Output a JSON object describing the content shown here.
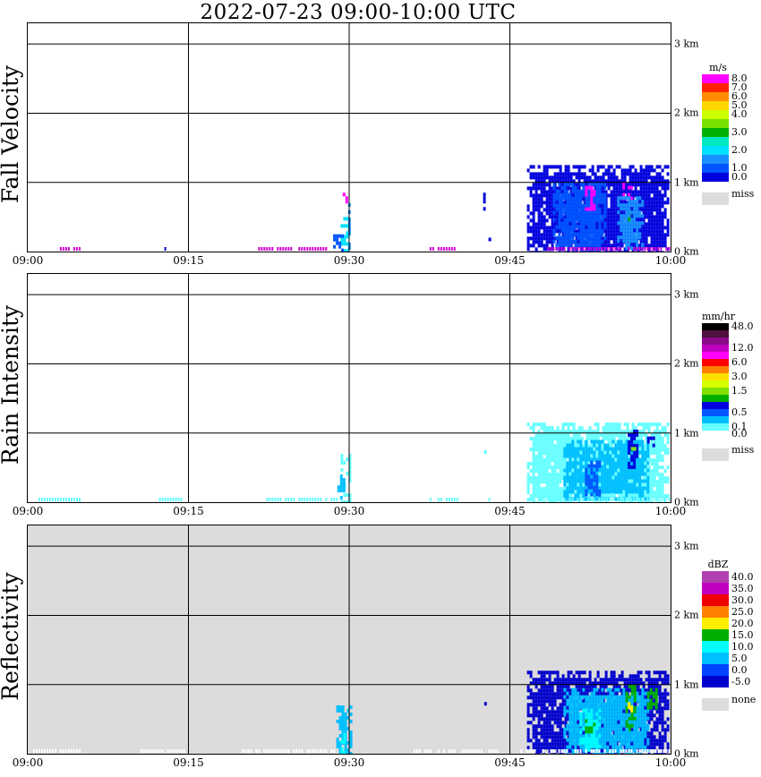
{
  "title": "2022-07-23   09:00-10:00 UTC",
  "chart_data": [
    {
      "type": "heatmap",
      "panel": "Fall Velocity",
      "ylabel": "Fall Velocity",
      "x_ticks": [
        "09:00",
        "09:15",
        "09:30",
        "09:45",
        "10:00"
      ],
      "y_ticks": [
        "0 km",
        "1 km",
        "2 km",
        "3 km"
      ],
      "xlim": [
        "09:00",
        "10:00"
      ],
      "ylim_km": [
        0,
        3.3
      ],
      "grid": true,
      "background": "white",
      "legend": {
        "unit": "m/s",
        "entries": [
          {
            "label": "8.0",
            "color": "#ff00ff"
          },
          {
            "label": "7.0",
            "color": "#ff2200"
          },
          {
            "label": "6.0",
            "color": "#ff8c00"
          },
          {
            "label": "5.0",
            "color": "#ffd700"
          },
          {
            "label": "4.0",
            "color": "#ccff00"
          },
          {
            "label": "",
            "color": "#7ae000"
          },
          {
            "label": "3.0",
            "color": "#00b000"
          },
          {
            "label": "",
            "color": "#00e8c0"
          },
          {
            "label": "2.0",
            "color": "#00e0ff"
          },
          {
            "label": "",
            "color": "#1a90ff"
          },
          {
            "label": "1.0",
            "color": "#0055ff"
          },
          {
            "label": "0.0",
            "color": "#0000dd"
          }
        ],
        "miss_label": "miss",
        "miss_color": "#dcdcdc"
      },
      "echoes": [
        {
          "x_min": 29.9,
          "x_max": 30.1,
          "z_min": 0.0,
          "z_max": 0.75,
          "color": "#1a90ff"
        },
        {
          "x_min": 29.2,
          "x_max": 29.9,
          "z_min": 0.0,
          "z_max": 0.5,
          "color": "#00e0ff"
        },
        {
          "x_min": 29.4,
          "x_max": 29.7,
          "z_min": 0.7,
          "z_max": 0.85,
          "color": "#ff00ff"
        },
        {
          "x_min": 28.5,
          "x_max": 29.4,
          "z_min": 0.0,
          "z_max": 0.25,
          "color": "#0055ff"
        },
        {
          "x_min": 42.5,
          "x_max": 42.7,
          "z_min": 0.6,
          "z_max": 0.85,
          "color": "#0000dd"
        },
        {
          "x_min": 43.0,
          "x_max": 43.2,
          "z_min": 0.05,
          "z_max": 0.2,
          "color": "#0000dd"
        },
        {
          "x_min": 46.6,
          "x_max": 59.8,
          "z_min": 0.0,
          "z_max": 1.25,
          "color": "#0000dd"
        },
        {
          "x_min": 49.0,
          "x_max": 54.0,
          "z_min": 0.0,
          "z_max": 1.0,
          "color": "#0055ff"
        },
        {
          "x_min": 52.0,
          "x_max": 53.0,
          "z_min": 0.6,
          "z_max": 0.95,
          "color": "#ff00ff"
        },
        {
          "x_min": 55.5,
          "x_max": 56.5,
          "z_min": 0.75,
          "z_max": 1.0,
          "color": "#ff00ff"
        },
        {
          "x_min": 55.8,
          "x_max": 56.3,
          "z_min": 0.4,
          "z_max": 0.6,
          "color": "#00b000"
        },
        {
          "x_min": 55.0,
          "x_max": 57.5,
          "z_min": 0.05,
          "z_max": 0.8,
          "color": "#1a90ff"
        }
      ],
      "surface_marks": [
        {
          "x_min": 3.0,
          "x_max": 5.0,
          "color": "#d100d1"
        },
        {
          "x_min": 12.5,
          "x_max": 13.0,
          "color": "#0000dd"
        },
        {
          "x_min": 14.5,
          "x_max": 15.0,
          "color": "#d100d1"
        },
        {
          "x_min": 21.5,
          "x_max": 28.0,
          "color": "#d100d1"
        },
        {
          "x_min": 37.5,
          "x_max": 40.0,
          "color": "#d100d1"
        },
        {
          "x_min": 48.5,
          "x_max": 59.8,
          "color": "#d100d1"
        }
      ]
    },
    {
      "type": "heatmap",
      "panel": "Rain Intensity",
      "ylabel": "Rain Intensity",
      "x_ticks": [
        "09:00",
        "09:15",
        "09:30",
        "09:45",
        "10:00"
      ],
      "y_ticks": [
        "0 km",
        "1 km",
        "2 km",
        "3 km"
      ],
      "xlim": [
        "09:00",
        "10:00"
      ],
      "ylim_km": [
        0,
        3.3
      ],
      "grid": true,
      "background": "white",
      "legend": {
        "unit": "mm/hr",
        "entries": [
          {
            "label": "48.0",
            "color": "#000000"
          },
          {
            "label": "",
            "color": "#501040"
          },
          {
            "label": "",
            "color": "#8a0a8a"
          },
          {
            "label": "12.0",
            "color": "#c000c0"
          },
          {
            "label": "",
            "color": "#ff00ff"
          },
          {
            "label": "6.0",
            "color": "#ff0000"
          },
          {
            "label": "",
            "color": "#ff8000"
          },
          {
            "label": "3.0",
            "color": "#ffe000"
          },
          {
            "label": "",
            "color": "#d6ff00"
          },
          {
            "label": "1.5",
            "color": "#80e000"
          },
          {
            "label": "",
            "color": "#00b000"
          },
          {
            "label": "",
            "color": "#0000dd"
          },
          {
            "label": "0.5",
            "color": "#0055ff"
          },
          {
            "label": "",
            "color": "#00bfff"
          },
          {
            "label": "0.1",
            "color": "#66ffff"
          },
          {
            "label": "0.0",
            "color": "#ffffff"
          }
        ],
        "miss_label": "miss",
        "miss_color": "#dcdcdc"
      },
      "echoes": [
        {
          "x_min": 29.2,
          "x_max": 30.1,
          "z_min": 0.0,
          "z_max": 0.75,
          "color": "#66ffff"
        },
        {
          "x_min": 28.9,
          "x_max": 29.6,
          "z_min": 0.05,
          "z_max": 0.4,
          "color": "#00bfff"
        },
        {
          "x_min": 42.6,
          "x_max": 42.7,
          "z_min": 0.6,
          "z_max": 0.8,
          "color": "#66ffff"
        },
        {
          "x_min": 46.6,
          "x_max": 59.8,
          "z_min": 0.0,
          "z_max": 1.15,
          "color": "#66ffff"
        },
        {
          "x_min": 50.0,
          "x_max": 58.0,
          "z_min": 0.05,
          "z_max": 0.9,
          "color": "#00bfff"
        },
        {
          "x_min": 52.0,
          "x_max": 53.5,
          "z_min": 0.1,
          "z_max": 0.6,
          "color": "#0055ff"
        },
        {
          "x_min": 56.0,
          "x_max": 57.0,
          "z_min": 0.5,
          "z_max": 1.05,
          "color": "#0000dd"
        },
        {
          "x_min": 56.3,
          "x_max": 56.6,
          "z_min": 0.75,
          "z_max": 0.85,
          "color": "#80e000"
        },
        {
          "x_min": 57.8,
          "x_max": 58.5,
          "z_min": 0.8,
          "z_max": 0.95,
          "color": "#0000dd"
        }
      ],
      "surface_marks": [
        {
          "x_min": 1.0,
          "x_max": 5.0,
          "color": "#66ffff"
        },
        {
          "x_min": 12.0,
          "x_max": 14.5,
          "color": "#66ffff"
        },
        {
          "x_min": 22.0,
          "x_max": 29.0,
          "color": "#66ffff"
        },
        {
          "x_min": 37.5,
          "x_max": 40.5,
          "color": "#66ffff"
        },
        {
          "x_min": 43.0,
          "x_max": 43.5,
          "color": "#66ffff"
        },
        {
          "x_min": 48.0,
          "x_max": 59.8,
          "color": "#66ffff"
        }
      ]
    },
    {
      "type": "heatmap",
      "panel": "Reflectivity",
      "ylabel": "Reflectivity",
      "x_ticks": [
        "09:00",
        "09:15",
        "09:30",
        "09:45",
        "10:00"
      ],
      "y_ticks": [
        "0 km",
        "1 km",
        "2 km",
        "3 km"
      ],
      "xlim": [
        "09:00",
        "10:00"
      ],
      "ylim_km": [
        0,
        3.3
      ],
      "grid": true,
      "background": "#dcdcdc",
      "legend": {
        "unit": "dBZ",
        "entries": [
          {
            "label": "40.0",
            "color": "#b040b0"
          },
          {
            "label": "35.0",
            "color": "#c000c0"
          },
          {
            "label": "30.0",
            "color": "#ee0000"
          },
          {
            "label": "25.0",
            "color": "#ff8000"
          },
          {
            "label": "20.0",
            "color": "#ffee00"
          },
          {
            "label": "15.0",
            "color": "#00b000"
          },
          {
            "label": "10.0",
            "color": "#00ffff"
          },
          {
            "label": "5.0",
            "color": "#00bfff"
          },
          {
            "label": "0.0",
            "color": "#0044ff"
          },
          {
            "label": "-5.0",
            "color": "#0000cc"
          }
        ],
        "miss_label": "none",
        "miss_color": "#dcdcdc"
      },
      "echoes": [
        {
          "x_min": 28.8,
          "x_max": 30.1,
          "z_min": 0.0,
          "z_max": 0.75,
          "color": "#00bfff"
        },
        {
          "x_min": 29.2,
          "x_max": 29.7,
          "z_min": 0.0,
          "z_max": 0.3,
          "color": "#00ffff"
        },
        {
          "x_min": 42.6,
          "x_max": 42.7,
          "z_min": 0.6,
          "z_max": 0.8,
          "color": "#0000cc"
        },
        {
          "x_min": 46.6,
          "x_max": 59.8,
          "z_min": 0.0,
          "z_max": 1.2,
          "color": "#0000cc"
        },
        {
          "x_min": 50.0,
          "x_max": 58.0,
          "z_min": 0.0,
          "z_max": 0.95,
          "color": "#00bfff"
        },
        {
          "x_min": 51.5,
          "x_max": 53.5,
          "z_min": 0.05,
          "z_max": 0.65,
          "color": "#00ffff"
        },
        {
          "x_min": 52.0,
          "x_max": 52.8,
          "z_min": 0.3,
          "z_max": 0.5,
          "color": "#00b000"
        },
        {
          "x_min": 55.8,
          "x_max": 56.8,
          "z_min": 0.35,
          "z_max": 1.0,
          "color": "#00b000"
        },
        {
          "x_min": 56.0,
          "x_max": 56.5,
          "z_min": 0.5,
          "z_max": 0.75,
          "color": "#ffee00"
        },
        {
          "x_min": 57.8,
          "x_max": 58.6,
          "z_min": 0.65,
          "z_max": 0.95,
          "color": "#00b000"
        }
      ],
      "surface_marks": [
        {
          "x_min": 0.5,
          "x_max": 5.0,
          "color": "#ffffff"
        },
        {
          "x_min": 10.5,
          "x_max": 14.8,
          "color": "#ffffff"
        },
        {
          "x_min": 20.0,
          "x_max": 29.0,
          "color": "#ffffff"
        },
        {
          "x_min": 36.0,
          "x_max": 42.5,
          "color": "#ffffff"
        },
        {
          "x_min": 43.0,
          "x_max": 44.0,
          "color": "#ffffff"
        },
        {
          "x_min": 46.0,
          "x_max": 59.8,
          "color": "#ffffff"
        }
      ]
    }
  ]
}
